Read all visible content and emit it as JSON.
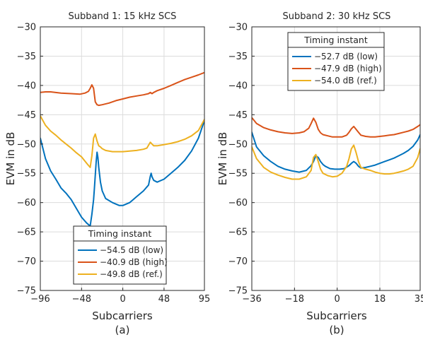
{
  "colors": {
    "low": "#0072BD",
    "high": "#D95319",
    "ref": "#EDB120",
    "grid": "#dcdcdc",
    "axis": "#262626"
  },
  "chart_data": [
    {
      "type": "line",
      "panel_label": "(a)",
      "title": "Subband 1: 15 kHz SCS",
      "xlabel": "Subcarriers",
      "ylabel": "EVM in dB",
      "xlim": [
        -96,
        95
      ],
      "ylim": [
        -75,
        -30
      ],
      "xticks": [
        -96,
        -48,
        0,
        48,
        95
      ],
      "yticks": [
        -75,
        -70,
        -65,
        -60,
        -55,
        -50,
        -45,
        -40,
        -35,
        -30
      ],
      "grid": true,
      "legend": {
        "title": "Timing instant",
        "placement": "bottom-center"
      },
      "series": [
        {
          "name": "−54.5 dB (low)",
          "color": "#0072BD",
          "x": [
            -96,
            -90,
            -84,
            -78,
            -72,
            -66,
            -60,
            -54,
            -48,
            -42,
            -38,
            -36,
            -34,
            -33,
            -31,
            -30,
            -29,
            -28,
            -26,
            -24,
            -20,
            -12,
            -4,
            0,
            8,
            16,
            24,
            30,
            32,
            33,
            34,
            36,
            40,
            48,
            56,
            64,
            72,
            80,
            88,
            95
          ],
          "y": [
            -49,
            -52.5,
            -54.6,
            -56,
            -57.5,
            -58.4,
            -59.5,
            -61,
            -62.5,
            -63.5,
            -64,
            -62,
            -59.5,
            -57.5,
            -53,
            -51.4,
            -52.3,
            -54,
            -56.5,
            -58,
            -59.3,
            -60,
            -60.5,
            -60.5,
            -60,
            -59,
            -58,
            -57,
            -55.5,
            -55,
            -55.6,
            -56.2,
            -56.5,
            -56,
            -55,
            -54,
            -52.8,
            -51.2,
            -49,
            -46
          ]
        },
        {
          "name": "−40.9 dB (high)",
          "color": "#D95319",
          "x": [
            -96,
            -90,
            -84,
            -72,
            -60,
            -50,
            -44,
            -40,
            -38,
            -36,
            -34,
            -32,
            -30,
            -28,
            -24,
            -16,
            -8,
            0,
            8,
            16,
            24,
            30,
            32,
            34,
            36,
            40,
            48,
            56,
            64,
            72,
            80,
            88,
            95
          ],
          "y": [
            -41.2,
            -41.1,
            -41.1,
            -41.3,
            -41.4,
            -41.5,
            -41.3,
            -41,
            -40.5,
            -39.9,
            -40.5,
            -42.8,
            -43.3,
            -43.4,
            -43.3,
            -43,
            -42.6,
            -42.3,
            -42,
            -41.8,
            -41.6,
            -41.4,
            -41.2,
            -41.4,
            -41.2,
            -40.9,
            -40.5,
            -40,
            -39.5,
            -39,
            -38.6,
            -38.2,
            -37.8
          ]
        },
        {
          "name": "−49.8 dB (ref.)",
          "color": "#EDB120",
          "x": [
            -96,
            -90,
            -84,
            -78,
            -72,
            -66,
            -60,
            -54,
            -48,
            -42,
            -38,
            -36,
            -34,
            -32,
            -30,
            -28,
            -26,
            -24,
            -20,
            -12,
            -4,
            0,
            8,
            16,
            24,
            28,
            32,
            34,
            36,
            40,
            48,
            56,
            64,
            72,
            80,
            88,
            95
          ],
          "y": [
            -45.2,
            -46.8,
            -47.8,
            -48.5,
            -49.3,
            -50,
            -50.7,
            -51.5,
            -52.2,
            -53.3,
            -54,
            -52,
            -49,
            -48.3,
            -49.5,
            -50.3,
            -50.5,
            -50.8,
            -51.1,
            -51.3,
            -51.3,
            -51.3,
            -51.2,
            -51.1,
            -50.9,
            -50.7,
            -49.7,
            -50,
            -50.3,
            -50.3,
            -50.1,
            -49.9,
            -49.6,
            -49.2,
            -48.6,
            -47.7,
            -45.8
          ]
        }
      ]
    },
    {
      "type": "line",
      "panel_label": "(b)",
      "title": "Subband 2: 30 kHz SCS",
      "xlabel": "Subcarriers",
      "ylabel": "EVM in dB",
      "xlim": [
        -36,
        35
      ],
      "ylim": [
        -75,
        -30
      ],
      "xticks": [
        -36,
        -18,
        0,
        18,
        35
      ],
      "yticks": [
        -75,
        -70,
        -65,
        -60,
        -55,
        -50,
        -45,
        -40,
        -35,
        -30
      ],
      "grid": true,
      "legend": {
        "title": "Timing instant",
        "placement": "top-center"
      },
      "series": [
        {
          "name": "−52.7 dB (low)",
          "color": "#0072BD",
          "x": [
            -36,
            -34,
            -31,
            -28,
            -25,
            -22,
            -19,
            -16,
            -13,
            -11,
            -10,
            -9,
            -8,
            -7,
            -6,
            -5,
            -3,
            -1,
            1,
            3,
            5,
            6,
            7,
            8,
            9,
            10,
            12,
            14,
            16,
            18,
            20,
            22,
            24,
            26,
            28,
            30,
            32,
            34,
            35
          ],
          "y": [
            -48,
            -50.5,
            -52,
            -53,
            -53.8,
            -54.3,
            -54.6,
            -54.8,
            -54.5,
            -53.7,
            -53,
            -52,
            -52.3,
            -53,
            -53.5,
            -53.8,
            -54.2,
            -54.3,
            -54.3,
            -54.2,
            -53.7,
            -53.3,
            -53,
            -53.3,
            -53.8,
            -54.1,
            -54,
            -53.8,
            -53.6,
            -53.3,
            -53,
            -52.7,
            -52.4,
            -52,
            -51.6,
            -51.1,
            -50.4,
            -49.3,
            -48.4
          ]
        },
        {
          "name": "−47.9 dB (high)",
          "color": "#D95319",
          "x": [
            -36,
            -34,
            -31,
            -28,
            -25,
            -22,
            -19,
            -16,
            -14,
            -12,
            -11,
            -10,
            -9,
            -8,
            -7,
            -6,
            -4,
            -2,
            0,
            2,
            4,
            5,
            6,
            7,
            8,
            9,
            10,
            12,
            14,
            16,
            18,
            20,
            22,
            24,
            26,
            28,
            30,
            32,
            34,
            35
          ],
          "y": [
            -45.5,
            -46.5,
            -47.2,
            -47.6,
            -47.9,
            -48.1,
            -48.2,
            -48.1,
            -47.9,
            -47.3,
            -46.5,
            -45.6,
            -46.3,
            -47.5,
            -48.1,
            -48.4,
            -48.6,
            -48.8,
            -48.8,
            -48.8,
            -48.5,
            -48,
            -47.4,
            -47,
            -47.5,
            -48,
            -48.5,
            -48.7,
            -48.8,
            -48.8,
            -48.7,
            -48.6,
            -48.5,
            -48.4,
            -48.2,
            -48,
            -47.8,
            -47.5,
            -47,
            -46.7
          ]
        },
        {
          "name": "−54.0 dB (ref.)",
          "color": "#EDB120",
          "x": [
            -36,
            -34,
            -31,
            -28,
            -25,
            -22,
            -19,
            -16,
            -13,
            -11,
            -10,
            -9,
            -8,
            -7,
            -6,
            -4,
            -2,
            0,
            2,
            4,
            5,
            6,
            7,
            8,
            9,
            10,
            12,
            14,
            16,
            18,
            20,
            22,
            24,
            26,
            28,
            30,
            32,
            34,
            35
          ],
          "y": [
            -50.5,
            -52.5,
            -54,
            -54.8,
            -55.3,
            -55.7,
            -56,
            -56,
            -55.6,
            -54.5,
            -52.3,
            -51.8,
            -53,
            -54.3,
            -55,
            -55.4,
            -55.6,
            -55.5,
            -55,
            -53.8,
            -52.5,
            -50.8,
            -50.2,
            -51.5,
            -53,
            -54,
            -54.3,
            -54.5,
            -54.8,
            -55,
            -55.1,
            -55.1,
            -55,
            -54.8,
            -54.6,
            -54.3,
            -53.8,
            -52.3,
            -50.8
          ]
        }
      ]
    }
  ]
}
